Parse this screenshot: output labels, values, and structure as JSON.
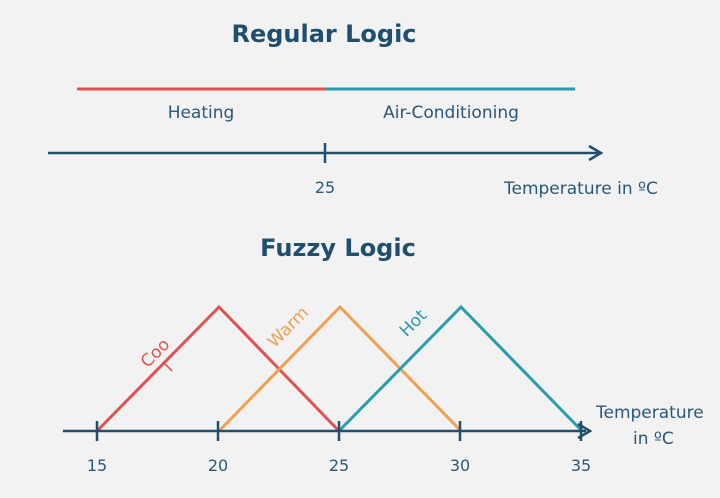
{
  "regular_logic": {
    "title": "Regular Logic",
    "heating_label": "Heating",
    "ac_label": "Air-Conditioning",
    "tick_label": "25",
    "axis_label": "Temperature in ºC"
  },
  "fuzzy_logic": {
    "title": "Fuzzy Logic",
    "cool_label_part1": "Coo",
    "cool_label_part2": "l",
    "warm_label": "Warm",
    "hot_label": "Hot",
    "axis_label_line1": "Temperature",
    "axis_label_line2": "in ºC",
    "ticks": [
      "15",
      "20",
      "25",
      "30",
      "35"
    ]
  },
  "colors": {
    "heating": "#e05252",
    "ac": "#2b9bb0",
    "cool": "#e05252",
    "warm": "#f0a050",
    "hot": "#2b9bb0",
    "axis": "#1f4e6f",
    "background": "#f2f2f2"
  }
}
